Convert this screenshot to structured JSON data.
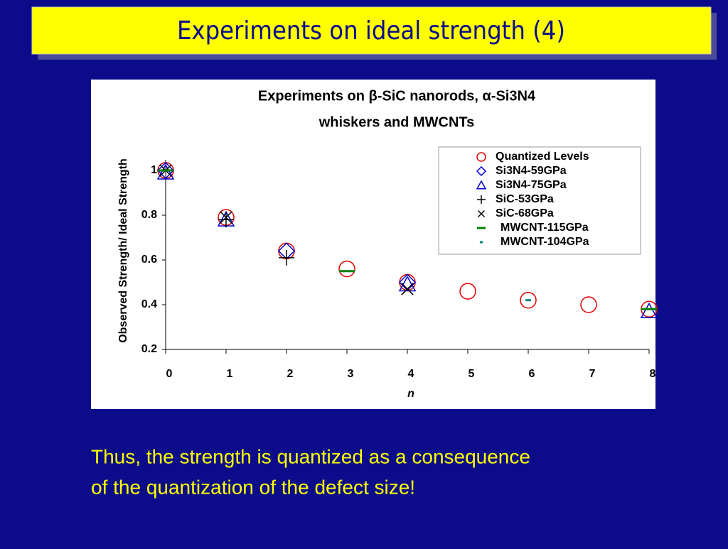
{
  "slide_title": "Experiments on ideal strength (4)",
  "chart_data": {
    "type": "scatter",
    "title": [
      "Experiments on β-SiC nanorods,  α-Si3N4",
      "whiskers and MWCNTs"
    ],
    "xlabel": "n",
    "ylabel": "Observed Strength/ Ideal Strength",
    "xlim": [
      0,
      8
    ],
    "xticks": [
      0,
      1,
      2,
      3,
      4,
      5,
      6,
      7,
      8
    ],
    "ylim": [
      0.2,
      1
    ],
    "yticks": [
      0.2,
      0.4,
      0.6,
      0.8,
      1
    ],
    "legend": "upper right",
    "series": [
      {
        "name": "Quantized Levels",
        "color": "#e00000",
        "marker": "circle",
        "x": [
          0,
          1,
          2,
          3,
          4,
          5,
          6,
          7,
          8
        ],
        "values": [
          1,
          0.79,
          0.64,
          0.56,
          0.5,
          0.46,
          0.42,
          0.4,
          0.38
        ]
      },
      {
        "name": "Si3N4-59GPa",
        "color": "#0000cc",
        "marker": "diamond",
        "x": [
          0,
          2,
          4
        ],
        "values": [
          1,
          0.64,
          0.5
        ]
      },
      {
        "name": "Si3N4-75GPa",
        "color": "#0000cc",
        "marker": "triangle",
        "x": [
          0,
          1,
          4,
          8
        ],
        "values": [
          0.99,
          0.78,
          0.49,
          0.37
        ]
      },
      {
        "name": "SiC-53GPa",
        "color": "#000000",
        "marker": "plus",
        "x": [
          1,
          2
        ],
        "values": [
          0.78,
          0.61
        ]
      },
      {
        "name": "SiC-68GPa",
        "color": "#000000",
        "marker": "cross",
        "x": [
          0,
          1,
          4
        ],
        "values": [
          1,
          0.79,
          0.47
        ]
      },
      {
        "name": "MWCNT-115GPa",
        "color": "#008000",
        "marker": "dash",
        "x": [
          0,
          3,
          8
        ],
        "values": [
          1,
          0.55,
          0.38
        ]
      },
      {
        "name": "MWCNT-104GPa",
        "color": "#008080",
        "marker": "short-dash",
        "x": [
          6
        ],
        "values": [
          0.42
        ]
      }
    ]
  },
  "caption": [
    "Thus, the strength is quantized as a consequence",
    "of the quantization of the defect size!"
  ]
}
